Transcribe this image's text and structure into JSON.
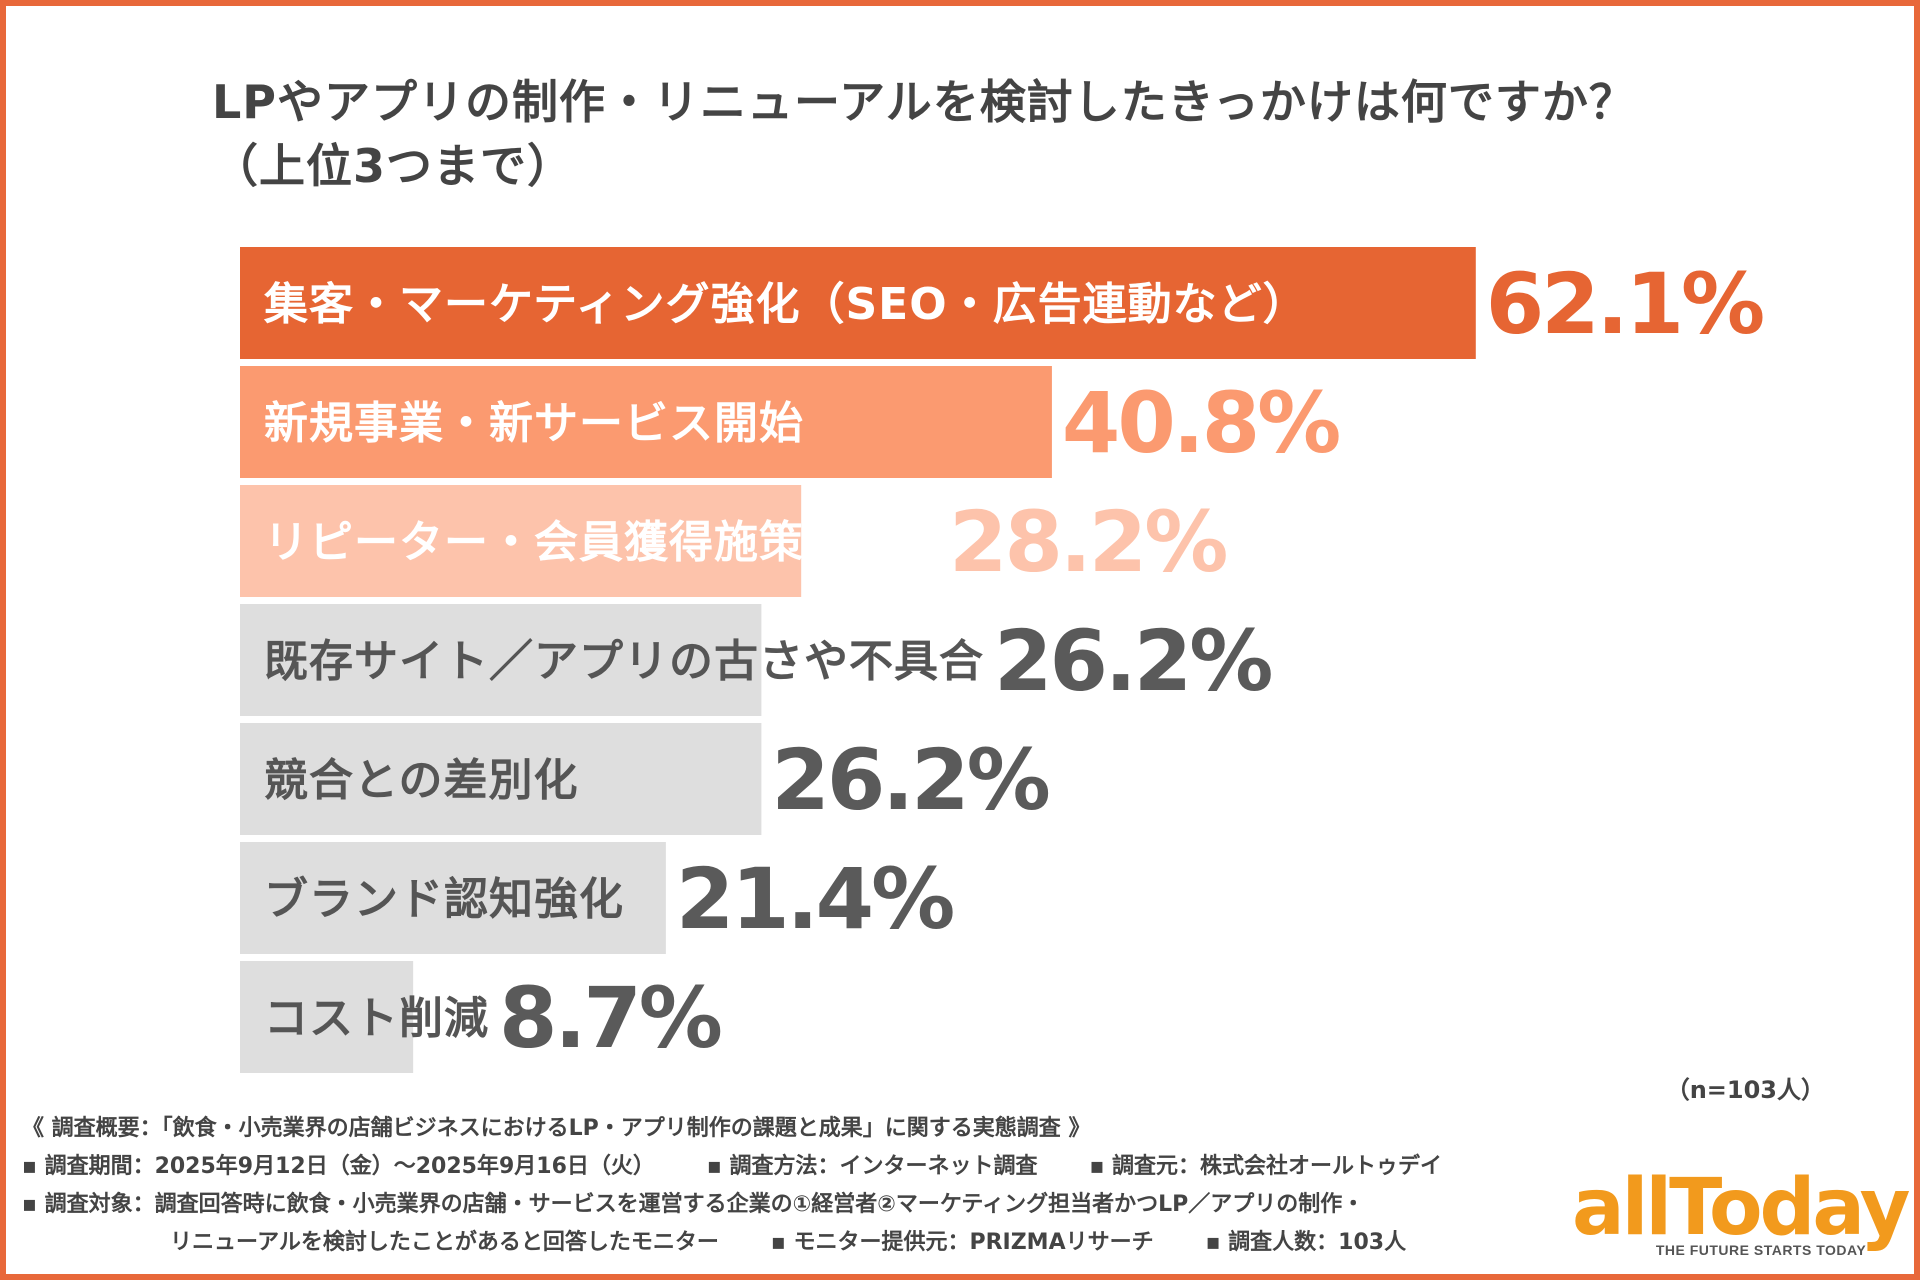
{
  "title": {
    "line1": "LPやアプリの制作・リニューアルを検討したきっかけは何ですか？",
    "line2": "（上位3つまで）"
  },
  "chart_data": {
    "type": "bar",
    "orientation": "horizontal",
    "unit": "%",
    "xlim": [
      0,
      100
    ],
    "categories": [
      "集客・マーケティング強化（SEO・広告連動など）",
      "新規事業・新サービス開始",
      "リピーター・会員獲得施策の強化",
      "既存サイト／アプリの古さや不具合",
      "競合との差別化",
      "ブランド認知強化",
      "コスト削減"
    ],
    "values": [
      62.1,
      40.8,
      28.2,
      26.2,
      26.2,
      21.4,
      8.7
    ],
    "value_labels": [
      "62.1%",
      "40.8%",
      "28.2%",
      "26.2%",
      "26.2%",
      "21.4%",
      "8.7%"
    ],
    "bar_colors": [
      "#e66533",
      "#fb9a70",
      "#fdc3ab",
      "#dedede",
      "#dedede",
      "#dedede",
      "#dedede"
    ],
    "label_colors": [
      "#ffffff",
      "#ffffff",
      "#ffffff",
      "#555555",
      "#555555",
      "#555555",
      "#555555"
    ],
    "value_colors": [
      "#e66533",
      "#fb9a70",
      "#fdc3ab",
      "#5a5a5a",
      "#5a5a5a",
      "#5a5a5a",
      "#5a5a5a"
    ],
    "grid": false,
    "legend": "none"
  },
  "sample_size": "（n=103人）",
  "footer": {
    "summary": "《 調査概要：「飲食・小売業界の店舗ビジネスにおけるLP・アプリ制作の課題と成果」に関する実態調査 》",
    "period": "▪ 調査期間：2025年9月12日（金）〜2025年9月16日（火）",
    "method": "▪ 調査方法：インターネット調査",
    "source": "▪ 調査元：株式会社オールトゥデイ",
    "target_line1": "▪ 調査対象：調査回答時に飲食・小売業界の店舗・サービスを運営する企業の①経営者②マーケティング担当者かつLP／アプリの制作・",
    "target_line2": "リニューアルを検討したことがあると回答したモニター",
    "provider": "▪ モニター提供元：PRIZMAリサーチ",
    "count": "▪ 調査人数：103人"
  },
  "logo": {
    "word": "allToday",
    "tagline": "THE FUTURE STARTS TODAY",
    "color": "#f29a1d"
  }
}
